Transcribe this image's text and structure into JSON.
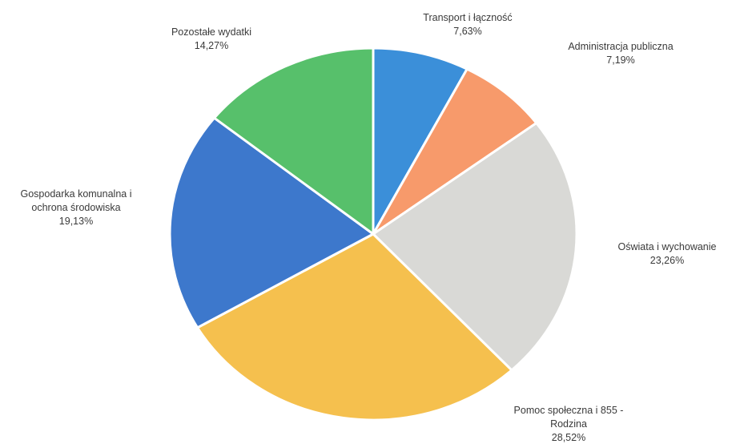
{
  "chart_data": {
    "type": "pie",
    "slices": [
      {
        "label": "Transport i łączność",
        "percent_label": "7,63%",
        "value": 7.63,
        "color": "#3b8fd9"
      },
      {
        "label": "Administracja publiczna",
        "percent_label": "7,19%",
        "value": 7.19,
        "color": "#f79a6b"
      },
      {
        "label": "Oświata i wychowanie",
        "percent_label": "23,26%",
        "value": 23.26,
        "color": "#d9d9d6"
      },
      {
        "label": "Pomoc społeczna i 855 - Rodzina",
        "percent_label": "28,52%",
        "value": 28.52,
        "color": "#f5c04e"
      },
      {
        "label": "Gospodarka komunalna i ochrona środowiska",
        "percent_label": "19,13%",
        "value": 19.13,
        "color": "#3d78cc"
      },
      {
        "label": "Pozostałe wydatki",
        "percent_label": "14,27%",
        "value": 14.27,
        "color": "#57c06b"
      }
    ]
  }
}
